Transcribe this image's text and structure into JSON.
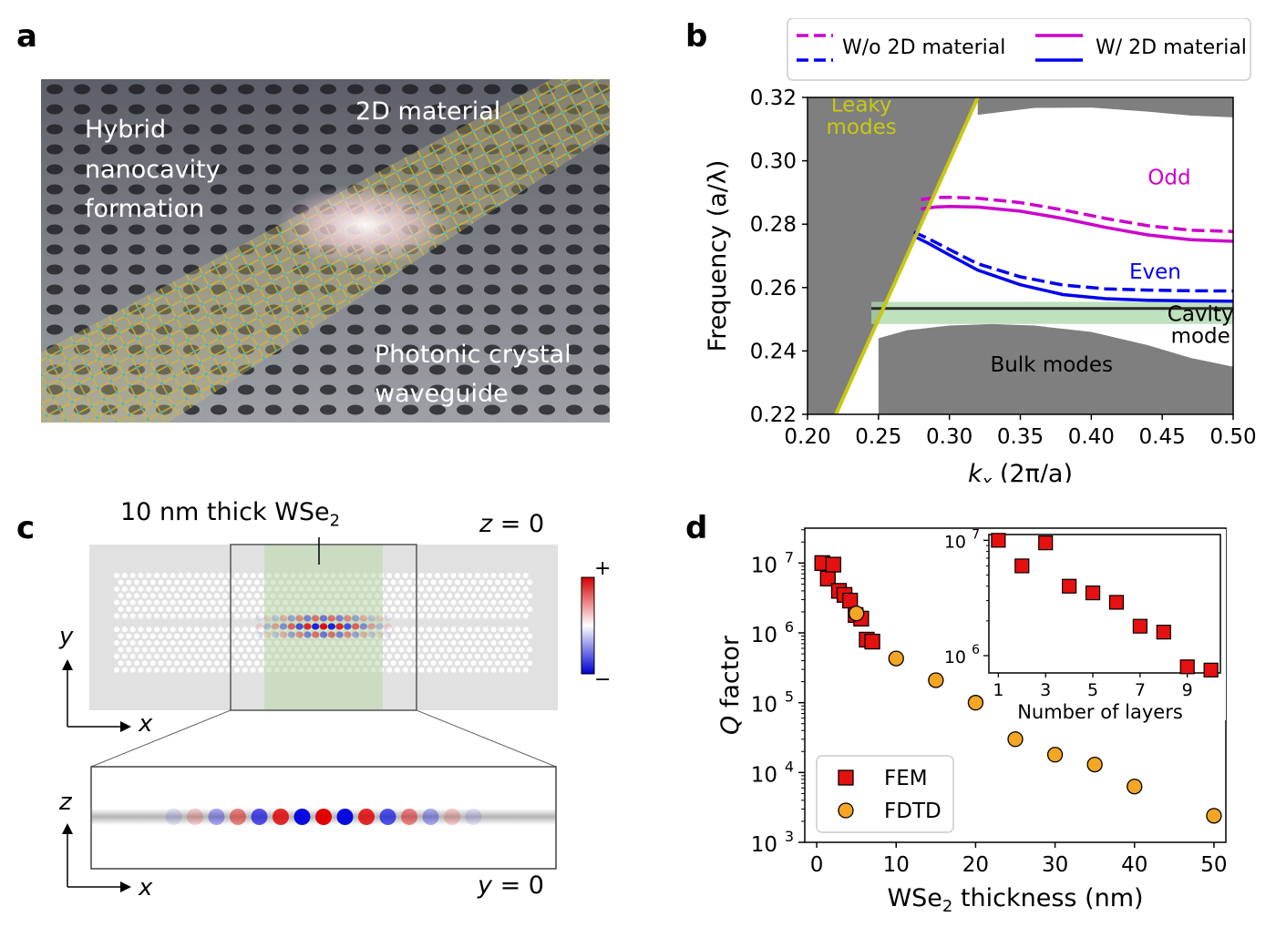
{
  "panels": {
    "a": {
      "label": "a",
      "text_hybrid": "Hybrid",
      "text_nanocavity": "nanocavity",
      "text_formation": "formation",
      "text_2d": "2D material",
      "text_pc": "Photonic crystal",
      "text_wg": "waveguide"
    },
    "b": {
      "label": "b"
    },
    "c": {
      "label": "c",
      "title_main": "10 nm thick WSe",
      "title_sub": "2",
      "z0_var": "z",
      "z0_eq": " = 0",
      "y0_var": "y",
      "y0_eq": " = 0",
      "axis_y": "y",
      "axis_x": "x",
      "axis_z": "z",
      "axis_x2": "x",
      "cb_plus": "+",
      "cb_minus": "−"
    },
    "d": {
      "label": "d"
    }
  },
  "chart_data": [
    {
      "type": "line",
      "panel": "b",
      "xlabel_var": "k",
      "xlabel_sub": "x",
      "xlabel_unit": " (2π/a)",
      "ylabel": "Frequency (a/λ)",
      "xlim": [
        0.2,
        0.5
      ],
      "ylim": [
        0.22,
        0.32
      ],
      "xticks": [
        "0.20",
        "0.25",
        "0.30",
        "0.35",
        "0.40",
        "0.45",
        "0.50"
      ],
      "yticks": [
        "0.22",
        "0.24",
        "0.26",
        "0.28",
        "0.30",
        "0.32"
      ],
      "legend": [
        "W/o 2D material",
        "W/ 2D material"
      ],
      "annotations": {
        "leaky1": "Leaky",
        "leaky2": "modes",
        "odd": "Odd",
        "even": "Even",
        "cavity1": "Cavity",
        "cavity2": "mode",
        "bulk": "Bulk modes"
      },
      "light_line": {
        "x": [
          0.22,
          0.32
        ],
        "y": [
          0.22,
          0.32
        ]
      },
      "cavity_mode": {
        "x": [
          0.245,
          0.5
        ],
        "y": 0.2534,
        "band": [
          0.2485,
          0.2555
        ]
      },
      "series": [
        {
          "name": "Odd W/o 2D material",
          "color": "#cc00cc",
          "style": "dashed",
          "x": [
            0.28,
            0.29,
            0.3,
            0.32,
            0.35,
            0.38,
            0.41,
            0.44,
            0.47,
            0.5
          ],
          "y": [
            0.2878,
            0.2884,
            0.2885,
            0.2882,
            0.2868,
            0.2845,
            0.2818,
            0.2795,
            0.2781,
            0.2777
          ]
        },
        {
          "name": "Odd W/ 2D material",
          "color": "#cc00cc",
          "style": "solid",
          "x": [
            0.28,
            0.29,
            0.3,
            0.32,
            0.35,
            0.38,
            0.41,
            0.44,
            0.47,
            0.5
          ],
          "y": [
            0.2848,
            0.2854,
            0.2856,
            0.2854,
            0.2841,
            0.2818,
            0.279,
            0.2766,
            0.2751,
            0.2746
          ]
        },
        {
          "name": "Even W/o 2D material",
          "color": "#0000ee",
          "style": "dashed",
          "x": [
            0.275,
            0.285,
            0.3,
            0.32,
            0.35,
            0.38,
            0.41,
            0.44,
            0.47,
            0.5
          ],
          "y": [
            0.2775,
            0.2755,
            0.272,
            0.2675,
            0.2634,
            0.2608,
            0.2596,
            0.2592,
            0.259,
            0.2589
          ]
        },
        {
          "name": "Even W/ 2D material",
          "color": "#0000ee",
          "style": "solid",
          "x": [
            0.275,
            0.285,
            0.3,
            0.32,
            0.35,
            0.38,
            0.41,
            0.44,
            0.47,
            0.5
          ],
          "y": [
            0.2762,
            0.274,
            0.2703,
            0.2655,
            0.2609,
            0.2578,
            0.2565,
            0.256,
            0.2558,
            0.2557
          ]
        }
      ],
      "bulk_upper": {
        "x": [
          0.32,
          0.36,
          0.4,
          0.44,
          0.47,
          0.5
        ],
        "y": [
          0.3145,
          0.3167,
          0.3168,
          0.3155,
          0.3143,
          0.3137
        ]
      },
      "bulk_lower": {
        "x": [
          0.25,
          0.27,
          0.3,
          0.33,
          0.36,
          0.4,
          0.44,
          0.47,
          0.5
        ],
        "y": [
          0.244,
          0.2465,
          0.248,
          0.2485,
          0.248,
          0.246,
          0.2418,
          0.2378,
          0.235
        ]
      }
    },
    {
      "type": "scatter",
      "panel": "d",
      "xlabel_main": "WSe",
      "xlabel_sub": "2",
      "xlabel_rest": " thickness (nm)",
      "ylabel_var": "Q",
      "ylabel_rest": " factor",
      "xlim": [
        -1.5,
        51.5
      ],
      "yscale": "log",
      "ylim_log": [
        3,
        7.5
      ],
      "xticks": [
        "0",
        "10",
        "20",
        "30",
        "40",
        "50"
      ],
      "ytick_base": "10",
      "ytick_exps": [
        "3",
        "4",
        "5",
        "6",
        "7"
      ],
      "legend": [
        "FEM",
        "FDTD"
      ],
      "series": [
        {
          "name": "FEM",
          "marker": "square",
          "color": "#e51010",
          "x": [
            0.7,
            1.4,
            2.1,
            2.8,
            3.5,
            4.2,
            4.9,
            5.6,
            6.3,
            7.0
          ],
          "y": [
            10000000.0,
            6000000.0,
            9500000.0,
            4000000.0,
            3500000.0,
            2900000.0,
            1800000.0,
            1600000.0,
            800000.0,
            750000.0
          ]
        },
        {
          "name": "FDTD",
          "marker": "circle",
          "color": "#f5a623",
          "x": [
            5,
            10,
            15,
            20,
            25,
            30,
            35,
            40,
            50
          ],
          "y": [
            1900000.0,
            430000.0,
            210000.0,
            100000.0,
            30000.0,
            18000.0,
            13000.0,
            6300.0,
            2400.0
          ]
        }
      ],
      "inset": {
        "xlabel": "Number of layers",
        "xlim": [
          0.6,
          10.4
        ],
        "ylim_log": [
          5.85,
          7.05
        ],
        "xticks": [
          "1",
          "3",
          "5",
          "7",
          "9"
        ],
        "ytick_exps": [
          "6",
          "7"
        ],
        "x": [
          1,
          2,
          3,
          4,
          5,
          6,
          7,
          8,
          9,
          10
        ],
        "y": [
          10000000.0,
          6000000.0,
          9500000.0,
          4000000.0,
          3500000.0,
          2900000.0,
          1800000.0,
          1600000.0,
          800000.0,
          750000.0
        ]
      }
    }
  ]
}
